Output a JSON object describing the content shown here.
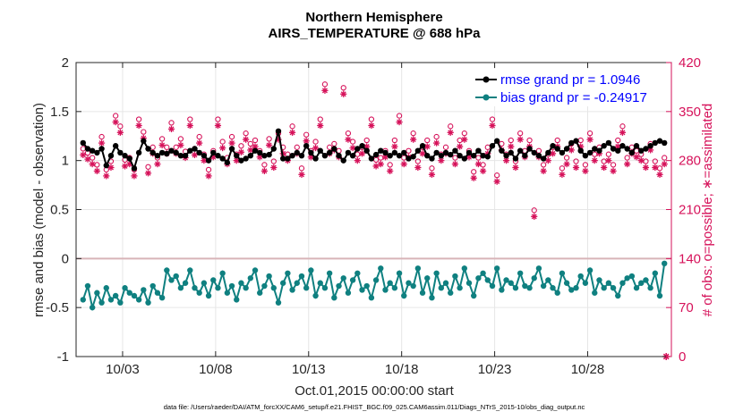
{
  "chart_data": {
    "type": "line",
    "title": "Northern Hemisphere",
    "subtitle": "AIRS_TEMPERATURE @ 688 hPa",
    "xlabel": "Oct.01,2015 00:00:00 start",
    "ylabel_left": "rmse and bias (model - observation)",
    "ylabel_right": "# of obs: o=possible; ∗=assimilated",
    "footnote": "data file: /Users/raeder/DAI/ATM_forcXX/CAM6_setup/f.e21.FHIST_BGC.f09_025.CAM6assim.011/Diags_NTrS_2015-10/obs_diag_output.nc",
    "xlim": [
      0.5,
      32.5
    ],
    "ylim_left": [
      -1,
      2
    ],
    "ylim_right": [
      0,
      420
    ],
    "x_ticks": [
      3,
      8,
      13,
      18,
      23,
      28
    ],
    "x_tick_labels": [
      "10/03",
      "10/08",
      "10/13",
      "10/18",
      "10/23",
      "10/28"
    ],
    "y_left_ticks": [
      -1,
      -0.5,
      0,
      0.5,
      1,
      1.5,
      2
    ],
    "y_left_tick_labels": [
      "-1",
      "-0.5",
      "0",
      "0.5",
      "1",
      "1.5",
      "2"
    ],
    "y_right_ticks": [
      0,
      70,
      140,
      210,
      280,
      350,
      420
    ],
    "y_right_tick_labels": [
      "0",
      "70",
      "140",
      "210",
      "280",
      "350",
      "420"
    ],
    "legend": [
      "rmse grand pr = 1.0946",
      "bias grand pr = -0.24917"
    ],
    "legend_position": "top-right",
    "colors": {
      "rmse": "#000000",
      "bias": "#0f8080",
      "obs": "#d6125a",
      "zero_line": "#d8b4b8",
      "grid": "#e6e6e6"
    },
    "x": {
      "start": 0.875,
      "step": 0.25,
      "count": 126
    },
    "series": [
      {
        "name": "rmse",
        "values": [
          1.18,
          1.12,
          1.1,
          1.08,
          1.12,
          0.95,
          1.05,
          1.15,
          1.08,
          1.05,
          1.02,
          0.92,
          1.08,
          1.2,
          1.12,
          1.08,
          1.05,
          1.08,
          1.07,
          1.1,
          1.08,
          1.05,
          1.05,
          1.1,
          1.12,
          1.08,
          1.05,
          1.0,
          1.08,
          1.05,
          1.02,
          0.98,
          1.12,
          1.05,
          1.0,
          1.02,
          1.05,
          1.1,
          1.08,
          1.05,
          1.06,
          1.12,
          1.3,
          1.02,
          1.02,
          1.05,
          1.08,
          1.05,
          1.15,
          1.08,
          1.02,
          1.1,
          1.05,
          1.08,
          1.12,
          1.05,
          1.0,
          1.08,
          1.05,
          1.12,
          1.15,
          1.1,
          1.02,
          1.06,
          1.1,
          1.08,
          1.05,
          1.08,
          1.05,
          1.08,
          1.02,
          1.04,
          1.1,
          1.15,
          1.05,
          1.02,
          1.08,
          1.05,
          1.08,
          1.06,
          1.1,
          1.05,
          1.02,
          1.08,
          1.05,
          1.1,
          1.05,
          1.04,
          1.15,
          1.2,
          1.1,
          1.05,
          1.08,
          1.02,
          1.1,
          1.05,
          1.12,
          1.08,
          1.05,
          1.02,
          1.08,
          1.15,
          1.12,
          1.08,
          1.12,
          1.18,
          1.2,
          1.1,
          1.05,
          1.08,
          1.12,
          1.1,
          1.15,
          1.18,
          1.12,
          1.1,
          1.15,
          1.12,
          1.08,
          1.15,
          1.1,
          1.12,
          1.15,
          1.18,
          1.2,
          1.18
        ]
      },
      {
        "name": "bias",
        "values": [
          -0.42,
          -0.28,
          -0.5,
          -0.35,
          -0.45,
          -0.3,
          -0.42,
          -0.38,
          -0.45,
          -0.3,
          -0.35,
          -0.38,
          -0.42,
          -0.32,
          -0.45,
          -0.28,
          -0.35,
          -0.4,
          -0.12,
          -0.22,
          -0.18,
          -0.3,
          -0.25,
          -0.12,
          -0.3,
          -0.35,
          -0.25,
          -0.38,
          -0.22,
          -0.3,
          -0.15,
          -0.35,
          -0.28,
          -0.42,
          -0.25,
          -0.3,
          -0.2,
          -0.12,
          -0.35,
          -0.28,
          -0.18,
          -0.3,
          -0.45,
          -0.25,
          -0.15,
          -0.32,
          -0.25,
          -0.18,
          -0.3,
          -0.12,
          -0.38,
          -0.25,
          -0.3,
          -0.15,
          -0.4,
          -0.28,
          -0.2,
          -0.35,
          -0.22,
          -0.15,
          -0.32,
          -0.28,
          -0.4,
          -0.22,
          -0.1,
          -0.32,
          -0.25,
          -0.3,
          -0.15,
          -0.38,
          -0.25,
          -0.28,
          -0.1,
          -0.35,
          -0.2,
          -0.4,
          -0.15,
          -0.3,
          -0.25,
          -0.35,
          -0.18,
          -0.3,
          -0.1,
          -0.25,
          -0.38,
          -0.2,
          -0.15,
          -0.22,
          -0.28,
          -0.1,
          -0.32,
          -0.22,
          -0.25,
          -0.3,
          -0.15,
          -0.28,
          -0.3,
          -0.2,
          -0.1,
          -0.28,
          -0.22,
          -0.3,
          -0.35,
          -0.15,
          -0.25,
          -0.32,
          -0.3,
          -0.18,
          -0.25,
          -0.12,
          -0.35,
          -0.22,
          -0.3,
          -0.25,
          -0.3,
          -0.38,
          -0.25,
          -0.2,
          -0.18,
          -0.3,
          -0.25,
          -0.22,
          -0.3,
          -0.15,
          -0.38,
          -0.05
        ]
      },
      {
        "name": "obs_assimilated",
        "values": [
          288,
          282,
          275,
          265,
          305,
          258,
          270,
          335,
          320,
          272,
          275,
          258,
          330,
          312,
          262,
          290,
          275,
          302,
          290,
          325,
          290,
          302,
          284,
          330,
          288,
          305,
          280,
          258,
          285,
          330,
          298,
          275,
          305,
          280,
          292,
          310,
          295,
          300,
          285,
          265,
          302,
          270,
          310,
          290,
          280,
          320,
          290,
          260,
          308,
          285,
          298,
          330,
          380,
          290,
          295,
          285,
          375,
          310,
          298,
          280,
          290,
          300,
          330,
          272,
          275,
          285,
          265,
          300,
          335,
          275,
          285,
          310,
          270,
          290,
          300,
          260,
          305,
          280,
          290,
          320,
          275,
          300,
          310,
          285,
          255,
          275,
          265,
          290,
          330,
          250,
          295,
          280,
          300,
          270,
          310,
          285,
          300,
          200,
          285,
          265,
          280,
          290,
          300,
          260,
          275,
          295,
          270,
          300,
          265,
          310,
          280,
          290,
          270,
          280,
          265,
          300,
          320,
          275,
          290,
          285,
          280,
          270,
          295,
          270,
          260,
          275
        ]
      },
      {
        "name": "obs_possible",
        "values": [
          288,
          282,
          275,
          265,
          305,
          258,
          270,
          335,
          320,
          272,
          275,
          258,
          330,
          312,
          262,
          290,
          275,
          302,
          290,
          325,
          290,
          302,
          284,
          330,
          288,
          305,
          280,
          258,
          285,
          330,
          298,
          275,
          305,
          280,
          292,
          310,
          295,
          300,
          285,
          265,
          302,
          270,
          310,
          290,
          280,
          320,
          290,
          260,
          308,
          285,
          298,
          330,
          380,
          290,
          295,
          285,
          375,
          310,
          298,
          280,
          290,
          300,
          330,
          272,
          275,
          285,
          265,
          300,
          335,
          275,
          285,
          310,
          270,
          290,
          300,
          260,
          305,
          280,
          290,
          320,
          275,
          300,
          310,
          285,
          255,
          275,
          265,
          290,
          330,
          250,
          295,
          280,
          300,
          270,
          310,
          285,
          300,
          200,
          285,
          265,
          280,
          290,
          300,
          260,
          275,
          295,
          270,
          300,
          265,
          310,
          280,
          290,
          270,
          280,
          265,
          300,
          320,
          275,
          290,
          285,
          280,
          270,
          295,
          270,
          260,
          275
        ]
      }
    ],
    "last_obs_marker_value": 0
  }
}
